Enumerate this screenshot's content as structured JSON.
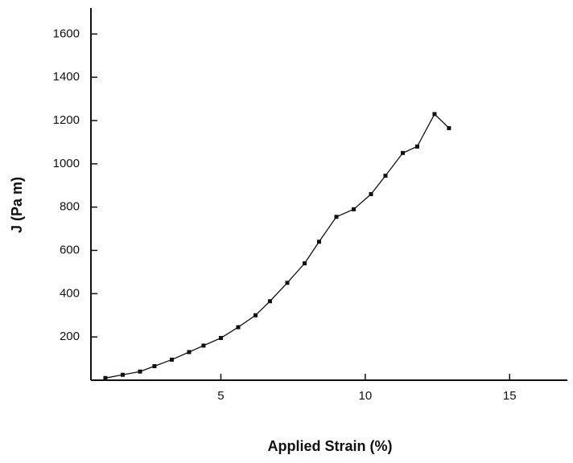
{
  "chart_data": {
    "type": "line",
    "x_label": "Applied Strain (%)",
    "y_label": "J (Pa m)",
    "series": [
      {
        "color": "#111111",
        "x": [
          1.0,
          1.6,
          2.2,
          2.7,
          3.3,
          3.9,
          4.4,
          5.0,
          5.6,
          6.2,
          6.7,
          7.3,
          7.9,
          8.4,
          9.0,
          9.6,
          10.2,
          10.7,
          11.3,
          11.8,
          12.4,
          12.9
        ],
        "values": [
          10,
          25,
          40,
          65,
          95,
          130,
          160,
          195,
          245,
          300,
          365,
          450,
          540,
          640,
          755,
          790,
          860,
          945,
          1050,
          1080,
          1230,
          1165
        ]
      }
    ],
    "xlim": [
      0.5,
      17
    ],
    "xticks": [
      5,
      10,
      15
    ],
    "ylim": [
      0,
      1720
    ],
    "yticks": [
      200,
      400,
      600,
      800,
      1000,
      1200,
      1400,
      1600
    ]
  }
}
